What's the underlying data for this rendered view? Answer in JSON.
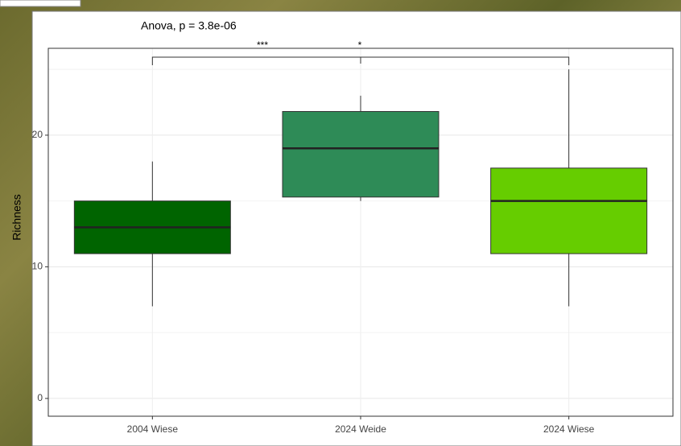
{
  "chart_data": {
    "type": "box",
    "annotation": "Anova, p = 3.8e-06",
    "significance": [
      "***",
      "*"
    ],
    "y_label": "Richness",
    "categories": [
      "2004 Wiese",
      "2024 Weide",
      "2024 Wiese"
    ],
    "boxes": [
      {
        "low": 7,
        "q1": 11,
        "median": 13,
        "q3": 15,
        "high": 18,
        "color": "#006400"
      },
      {
        "low": 15,
        "q1": 15.3,
        "median": 19,
        "q3": 21.8,
        "high": 23,
        "color": "#2e8b57"
      },
      {
        "low": 7,
        "q1": 11,
        "median": 15,
        "q3": 17.5,
        "high": 25,
        "color": "#66cd00"
      }
    ],
    "ylim": [
      -1.35,
      26.6
    ],
    "yticks": [
      0,
      10,
      20
    ],
    "minor_yticks": [
      5,
      15,
      25
    ],
    "grid": true
  }
}
